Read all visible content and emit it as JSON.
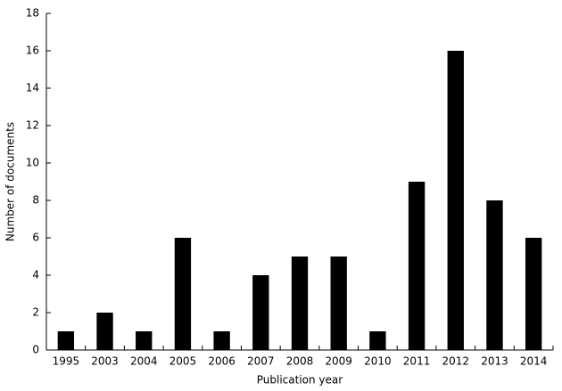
{
  "chart_data": {
    "type": "bar",
    "x_label": "Publication year",
    "y_label": "Number of documents",
    "categories": [
      "1995",
      "2003",
      "2004",
      "2005",
      "2006",
      "2007",
      "2008",
      "2009",
      "2010",
      "2011",
      "2012",
      "2013",
      "2014"
    ],
    "values": [
      1,
      2,
      1,
      6,
      1,
      4,
      5,
      5,
      1,
      9,
      16,
      8,
      6
    ],
    "color": "#000000",
    "ylim": [
      0,
      18
    ],
    "yticks": [
      0,
      2,
      4,
      6,
      8,
      10,
      12,
      14,
      16,
      18
    ],
    "grid": false
  }
}
